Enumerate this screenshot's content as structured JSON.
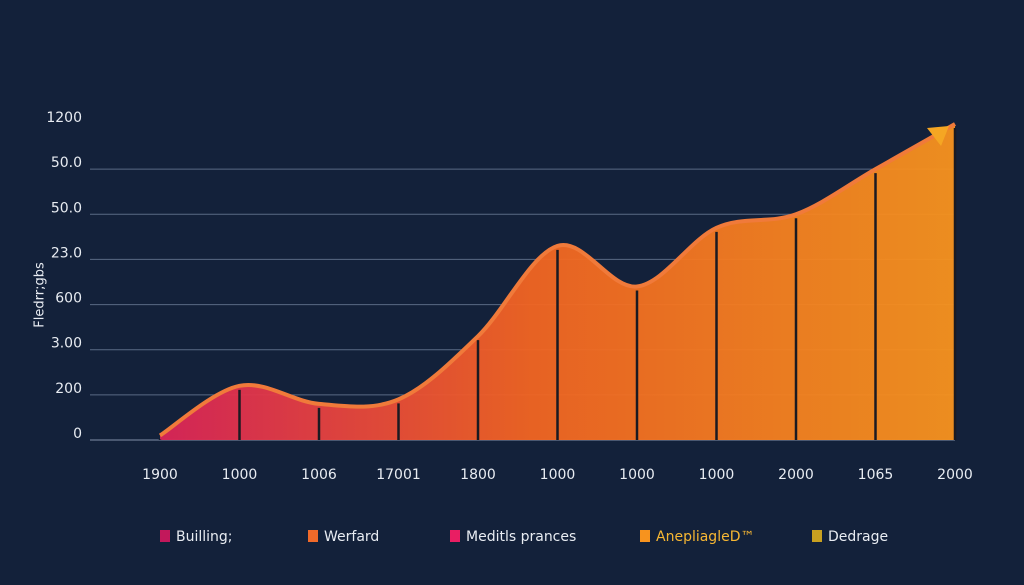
{
  "chart_data": {
    "type": "area",
    "y_label": "Fledrr;gbs",
    "categories": [
      "1900",
      "1000",
      "1006",
      "17001",
      "1800",
      "1000",
      "1000",
      "1000",
      "2000",
      "1065",
      "2000"
    ],
    "series": [
      {
        "color": [
          "#d81b60",
          "#f26522",
          "#f7931e"
        ],
        "values": [
          0.1,
          1.2,
          0.8,
          0.9,
          2.3,
          4.3,
          3.4,
          4.7,
          5.0,
          6.0,
          7.0
        ]
      }
    ],
    "ylim": [
      0,
      7
    ],
    "yticks": [
      {
        "value": 0,
        "label": "0"
      },
      {
        "value": 1,
        "label": "200"
      },
      {
        "value": 2,
        "label": "3.00"
      },
      {
        "value": 3,
        "label": "600"
      },
      {
        "value": 4,
        "label": "23.0"
      },
      {
        "value": 5,
        "label": "50.0"
      },
      {
        "value": 6,
        "label": "50.0"
      },
      {
        "value": 7,
        "label": "1200"
      }
    ],
    "grid": true,
    "legend": [
      {
        "name": "Builling;",
        "color": "#c2185b"
      },
      {
        "name": "Werfard",
        "color": "#f06a2a"
      },
      {
        "name": "Meditls prances",
        "color": "#e91e63"
      },
      {
        "name": "AnepliagleD™",
        "color": "#f7931e"
      },
      {
        "name": "Dedrage",
        "color": "#c8a020"
      }
    ]
  }
}
